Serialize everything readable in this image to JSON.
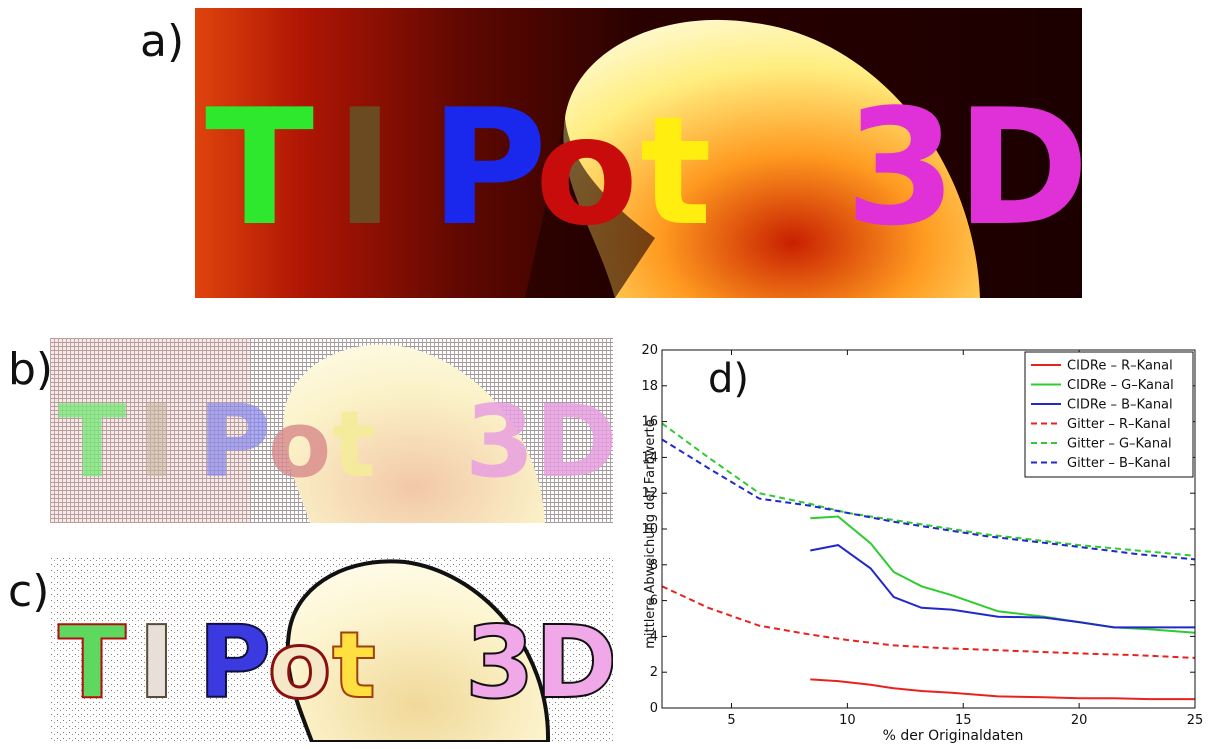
{
  "panels": {
    "a": {
      "label": "a)",
      "text": "TIPot 3D"
    },
    "b": {
      "label": "b)",
      "text": "TIPot 3D"
    },
    "c": {
      "label": "c)",
      "text": "TIPot 3D"
    },
    "d": {
      "label": "d)"
    }
  },
  "chart_data": {
    "type": "line",
    "title": "",
    "xlabel": "% der Originaldaten",
    "ylabel": "mittlere Abweichung der Farbwerte",
    "xlim": [
      2,
      25
    ],
    "ylim": [
      0,
      20
    ],
    "xticks": [
      5,
      10,
      15,
      20,
      25
    ],
    "yticks": [
      0,
      2,
      4,
      6,
      8,
      10,
      12,
      14,
      16,
      18,
      20
    ],
    "grid": false,
    "legend_position": "top-right",
    "series": [
      {
        "name": "CIDRe – R–Kanal",
        "color": "#e8231f",
        "dash": "solid",
        "x": [
          8.4,
          9.6,
          11,
          12,
          13.2,
          14.5,
          16.5,
          18.5,
          20,
          21.5,
          23,
          25
        ],
        "y": [
          1.6,
          1.5,
          1.3,
          1.1,
          0.95,
          0.85,
          0.65,
          0.6,
          0.55,
          0.55,
          0.5,
          0.5
        ]
      },
      {
        "name": "CIDRe – G–Kanal",
        "color": "#2ecc2e",
        "dash": "solid",
        "x": [
          8.4,
          9.6,
          11,
          12,
          13.2,
          14.5,
          16.5,
          18.5,
          20,
          21.5,
          23,
          25
        ],
        "y": [
          10.6,
          10.7,
          9.2,
          7.6,
          6.8,
          6.3,
          5.4,
          5.1,
          4.8,
          4.5,
          4.4,
          4.2
        ]
      },
      {
        "name": "CIDRe – B–Kanal",
        "color": "#2228cc",
        "dash": "solid",
        "x": [
          8.4,
          9.6,
          11,
          12,
          13.2,
          14.5,
          16.5,
          18.5,
          20,
          21.5,
          23,
          25
        ],
        "y": [
          8.8,
          9.1,
          7.8,
          6.2,
          5.6,
          5.5,
          5.1,
          5.05,
          4.8,
          4.5,
          4.5,
          4.5
        ]
      },
      {
        "name": "Gitter – R–Kanal",
        "color": "#e8231f",
        "dash": "dashed",
        "x": [
          2,
          4,
          6.2,
          8.4,
          10,
          12,
          14,
          16,
          18,
          20,
          22.5,
          25
        ],
        "y": [
          6.8,
          5.6,
          4.6,
          4.1,
          3.8,
          3.5,
          3.35,
          3.25,
          3.15,
          3.05,
          2.95,
          2.8
        ]
      },
      {
        "name": "Gitter – G–Kanal",
        "color": "#2ecc2e",
        "dash": "dashed",
        "x": [
          2,
          4,
          6.2,
          8.4,
          10,
          12,
          14,
          16,
          18,
          20,
          22.5,
          25
        ],
        "y": [
          15.9,
          14.0,
          12.0,
          11.4,
          10.9,
          10.5,
          10.1,
          9.7,
          9.4,
          9.1,
          8.8,
          8.5
        ]
      },
      {
        "name": "Gitter – B–Kanal",
        "color": "#2228cc",
        "dash": "dashed",
        "x": [
          2,
          4,
          6.2,
          8.4,
          10,
          12,
          14,
          16,
          18,
          20,
          22.5,
          25
        ],
        "y": [
          15.0,
          13.4,
          11.7,
          11.3,
          10.9,
          10.4,
          10.0,
          9.6,
          9.3,
          9.0,
          8.6,
          8.3
        ]
      }
    ]
  }
}
